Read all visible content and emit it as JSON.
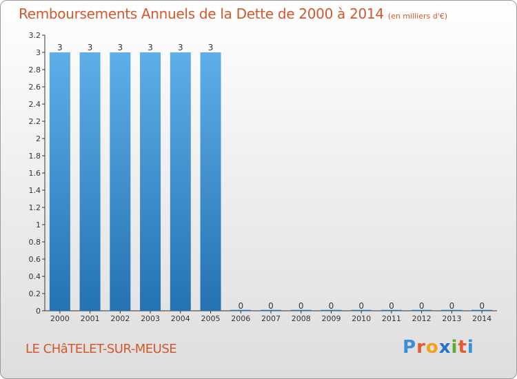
{
  "header": {
    "title": "Remboursements Annuels de la Dette de 2000 à 2014",
    "unit": "(en milliers d'€)"
  },
  "footer": {
    "commune": "LE CHâTELET-SUR-MEUSE",
    "brand_letters": [
      "P",
      "r",
      "o",
      "x",
      "i",
      "t",
      "i"
    ],
    "brand_colors": [
      "#3b8ed8",
      "#e35b2e",
      "#f3a21b",
      "#2a6fd1",
      "#5aae2f",
      "#e35b2e",
      "#3b8ed8"
    ]
  },
  "colors": {
    "bar_light": "#5eaee8",
    "bar_dark": "#2472b2",
    "axis": "#333333",
    "text": "#333333",
    "accent": "#d4572a"
  },
  "chart_data": {
    "type": "bar",
    "title": "Remboursements Annuels de la Dette de 2000 à 2014",
    "subtitle": "(en milliers d'€)",
    "xlabel": "",
    "ylabel": "",
    "categories": [
      "2000",
      "2001",
      "2002",
      "2003",
      "2004",
      "2005",
      "2006",
      "2007",
      "2008",
      "2009",
      "2010",
      "2011",
      "2012",
      "2013",
      "2014"
    ],
    "values": [
      3,
      3,
      3,
      3,
      3,
      3,
      0,
      0,
      0,
      0,
      0,
      0,
      0,
      0,
      0
    ],
    "data_labels": [
      "3",
      "3",
      "3",
      "3",
      "3",
      "3",
      "0",
      "0",
      "0",
      "0",
      "0",
      "0",
      "0",
      "0",
      "0"
    ],
    "ylim": [
      0,
      3.2
    ],
    "yticks": [
      0,
      0.2,
      0.4,
      0.6,
      0.8,
      1,
      1.2,
      1.4,
      1.6,
      1.8,
      2,
      2.2,
      2.4,
      2.6,
      2.8,
      3,
      3.2
    ],
    "ytick_labels": [
      "0",
      "0.2",
      "0.4",
      "0.6",
      "0.8",
      "1",
      "1.2",
      "1.4",
      "1.6",
      "1.8",
      "2",
      "2.2",
      "2.4",
      "2.6",
      "2.8",
      "3",
      "3.2"
    ],
    "grid": false
  }
}
